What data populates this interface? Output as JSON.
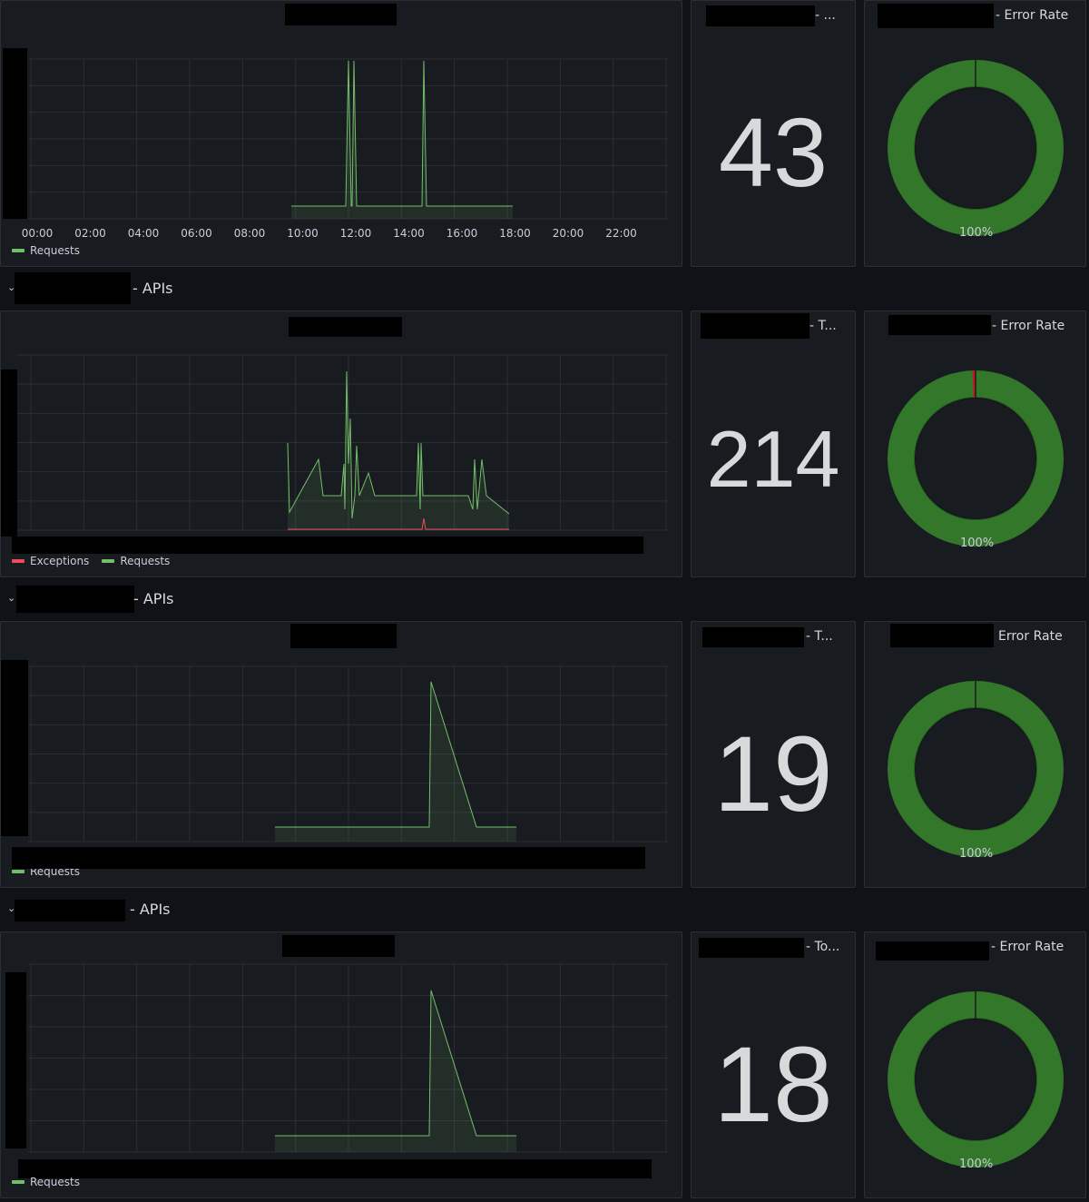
{
  "colors": {
    "background": "#111217",
    "panel": "#181b1f",
    "requests": "#73bf69",
    "exceptions": "#f2495c",
    "donut_ok": "#37872d",
    "grid": "#2c2e33"
  },
  "sections": [
    {
      "row_suffix": "",
      "timeseries": {
        "legend": [
          {
            "label": "Requests",
            "color": "#73bf69"
          }
        ],
        "x_ticks": [
          "00:00",
          "02:00",
          "04:00",
          "06:00",
          "08:00",
          "10:00",
          "12:00",
          "14:00",
          "16:00",
          "18:00",
          "20:00",
          "22:00"
        ]
      },
      "stat": {
        "title_suffix": "- ...",
        "value": "43"
      },
      "gauge": {
        "title_suffix": "- Error Rate",
        "percent": "100%",
        "error_fraction": 0
      }
    },
    {
      "row_suffix": "- APIs",
      "timeseries": {
        "legend": [
          {
            "label": "Exceptions",
            "color": "#f2495c"
          },
          {
            "label": "Requests",
            "color": "#73bf69"
          }
        ],
        "x_ticks": []
      },
      "stat": {
        "title_suffix": "- T...",
        "value": "214"
      },
      "gauge": {
        "title_suffix": "- Error Rate",
        "percent": "100%",
        "error_fraction": 0.005
      }
    },
    {
      "row_suffix": "- APIs",
      "timeseries": {
        "legend": [
          {
            "label": "Requests",
            "color": "#73bf69"
          }
        ],
        "x_ticks": []
      },
      "stat": {
        "title_suffix": "- T...",
        "value": "19"
      },
      "gauge": {
        "title_suffix": "Error Rate",
        "percent": "100%",
        "error_fraction": 0
      }
    },
    {
      "row_suffix": "- APIs",
      "timeseries": {
        "legend": [
          {
            "label": "Requests",
            "color": "#73bf69"
          }
        ],
        "x_ticks": []
      },
      "stat": {
        "title_suffix": "- To...",
        "value": "18"
      },
      "gauge": {
        "title_suffix": "- Error Rate",
        "percent": "100%",
        "error_fraction": 0
      }
    }
  ]
}
